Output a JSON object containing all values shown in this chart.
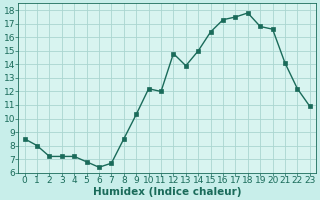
{
  "x": [
    0,
    1,
    2,
    3,
    4,
    5,
    6,
    7,
    8,
    9,
    10,
    11,
    12,
    13,
    14,
    15,
    16,
    17,
    18,
    19,
    20,
    21,
    22,
    23
  ],
  "y": [
    8.5,
    8.0,
    7.2,
    7.2,
    7.2,
    6.8,
    6.4,
    6.7,
    8.5,
    10.3,
    12.2,
    12.0,
    14.8,
    13.9,
    15.0,
    16.4,
    17.3,
    17.5,
    17.8,
    16.8,
    16.6,
    14.1,
    12.2,
    10.9
  ],
  "line_color": "#1a6b5a",
  "marker": "s",
  "marker_size": 2.5,
  "bg_color": "#c8eeea",
  "plot_bg_color": "#d8f4f0",
  "grid_color": "#aad6d0",
  "xlabel": "Humidex (Indice chaleur)",
  "xlim": [
    -0.5,
    23.5
  ],
  "ylim": [
    6,
    18.5
  ],
  "xticks": [
    0,
    1,
    2,
    3,
    4,
    5,
    6,
    7,
    8,
    9,
    10,
    11,
    12,
    13,
    14,
    15,
    16,
    17,
    18,
    19,
    20,
    21,
    22,
    23
  ],
  "yticks": [
    6,
    7,
    8,
    9,
    10,
    11,
    12,
    13,
    14,
    15,
    16,
    17,
    18
  ],
  "tick_color": "#1a6b5a",
  "label_fontsize": 6.5,
  "xlabel_fontsize": 7.5
}
